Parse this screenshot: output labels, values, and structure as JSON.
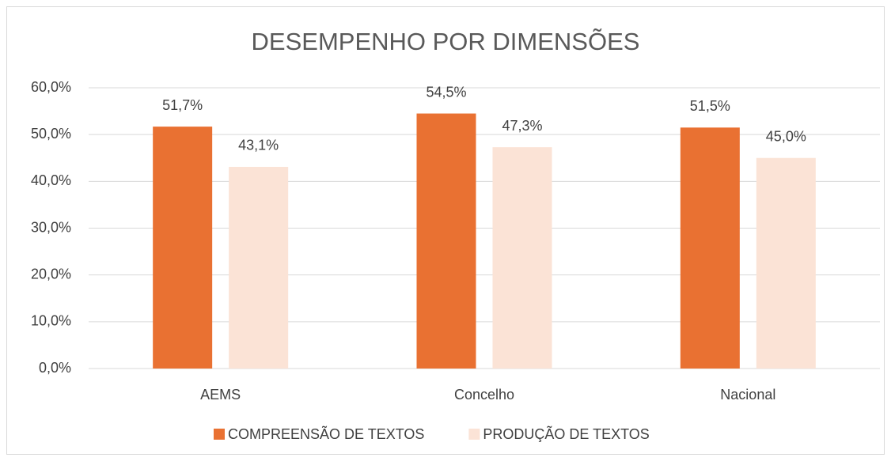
{
  "chart_data": {
    "type": "bar",
    "title": "DESEMPENHO POR DIMENSÕES",
    "categories": [
      "AEMS",
      "Concelho",
      "Nacional"
    ],
    "series": [
      {
        "name": "COMPREENSÃO DE TEXTOS",
        "color": "#e97132",
        "values": [
          51.7,
          54.5,
          51.5
        ],
        "value_labels": [
          "51,7%",
          "54,5%",
          "51,5%"
        ]
      },
      {
        "name": "PRODUÇÃO DE TEXTOS",
        "color": "#fbe3d6",
        "values": [
          43.1,
          47.3,
          45.0
        ],
        "value_labels": [
          "43,1%",
          "47,3%",
          "45,0%"
        ]
      }
    ],
    "ylim": [
      0,
      60
    ],
    "yticks": [
      {
        "value": 0,
        "label": "0,0%"
      },
      {
        "value": 10,
        "label": "10,0%"
      },
      {
        "value": 20,
        "label": "20,0%"
      },
      {
        "value": 30,
        "label": "30,0%"
      },
      {
        "value": 40,
        "label": "40,0%"
      },
      {
        "value": 50,
        "label": "50,0%"
      },
      {
        "value": 60,
        "label": "60,0%"
      }
    ],
    "grid": true,
    "legend": "bottom"
  }
}
